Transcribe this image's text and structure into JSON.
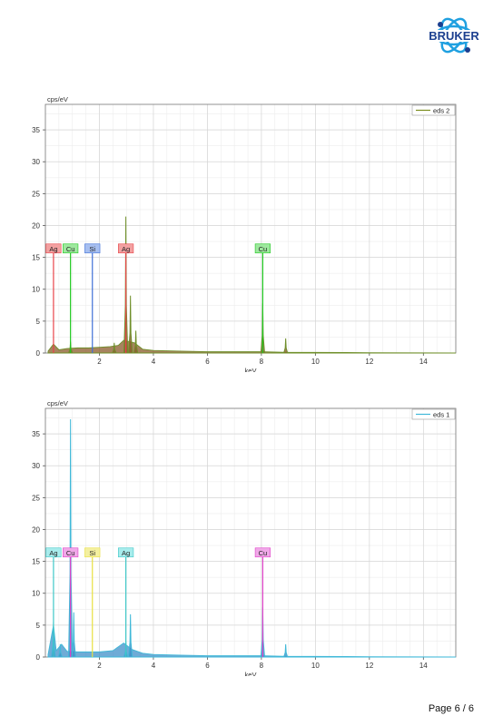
{
  "brand": {
    "logo_text": "BRUKER",
    "color": "#1c3f8f",
    "accent": "#1fa0e0"
  },
  "footer": {
    "page_label": "Page 6 / 6"
  },
  "chart_data": [
    {
      "type": "area",
      "ylabel": "cps/eV",
      "xlabel": "keV",
      "xlim": [
        0,
        15.2
      ],
      "ylim": [
        0,
        39
      ],
      "x_ticks": [
        2,
        4,
        6,
        8,
        10,
        12,
        14
      ],
      "y_ticks": [
        0,
        5,
        10,
        15,
        20,
        25,
        30,
        35
      ],
      "grid": true,
      "legend": {
        "position": "top-right",
        "entries": [
          {
            "label": "eds 2",
            "color": "#7a8c1e"
          }
        ]
      },
      "series": [
        {
          "name": "eds 2",
          "color": "#6f8f2a",
          "fill": "#8a5a2a",
          "baseline": [
            [
              0.1,
              0.3
            ],
            [
              0.3,
              1.4
            ],
            [
              0.5,
              0.5
            ],
            [
              0.8,
              0.7
            ],
            [
              1.2,
              0.8
            ],
            [
              1.6,
              0.8
            ],
            [
              2.0,
              0.9
            ],
            [
              2.4,
              1.0
            ],
            [
              2.7,
              1.2
            ],
            [
              2.9,
              2.0
            ],
            [
              3.3,
              1.6
            ],
            [
              3.6,
              0.6
            ],
            [
              4.0,
              0.4
            ],
            [
              5.0,
              0.3
            ],
            [
              6.0,
              0.2
            ],
            [
              7.0,
              0.2
            ],
            [
              8.0,
              0.2
            ],
            [
              9.0,
              0.1
            ],
            [
              10.0,
              0.1
            ],
            [
              12.0,
              0.05
            ],
            [
              15.2,
              0.0
            ]
          ],
          "peaks": [
            {
              "x": 0.93,
              "y": 1.8
            },
            {
              "x": 2.55,
              "y": 1.6
            },
            {
              "x": 2.98,
              "y": 21.4
            },
            {
              "x": 3.15,
              "y": 9.0
            },
            {
              "x": 3.35,
              "y": 3.5
            },
            {
              "x": 8.05,
              "y": 7.8
            },
            {
              "x": 8.9,
              "y": 2.3
            }
          ]
        }
      ],
      "markers": [
        {
          "label": "Ag",
          "x": 0.3,
          "y": 16.4,
          "color": "#e8454a",
          "box": "#f2a0a0"
        },
        {
          "label": "Cu",
          "x": 0.93,
          "y": 16.4,
          "color": "#1ec81e",
          "box": "#9ee89e"
        },
        {
          "label": "Si",
          "x": 1.74,
          "y": 16.4,
          "color": "#3f6fd6",
          "box": "#a7bff0"
        },
        {
          "label": "Ag",
          "x": 2.98,
          "y": 16.4,
          "color": "#e8454a",
          "box": "#f2a0a0"
        },
        {
          "label": "Cu",
          "x": 8.05,
          "y": 16.4,
          "color": "#1ec81e",
          "box": "#9ee89e"
        }
      ]
    },
    {
      "type": "area",
      "ylabel": "cps/eV",
      "xlabel": "keV",
      "xlim": [
        0,
        15.2
      ],
      "ylim": [
        0,
        39
      ],
      "x_ticks": [
        2,
        4,
        6,
        8,
        10,
        12,
        14
      ],
      "y_ticks": [
        0,
        5,
        10,
        15,
        20,
        25,
        30,
        35
      ],
      "grid": true,
      "legend": {
        "position": "top-right",
        "entries": [
          {
            "label": "eds 1",
            "color": "#3fb8d8"
          }
        ]
      },
      "series": [
        {
          "name": "eds 1",
          "color": "#3fb8d8",
          "fill": "#3f8fc8",
          "baseline": [
            [
              0.1,
              0.4
            ],
            [
              0.3,
              5.0
            ],
            [
              0.4,
              1.0
            ],
            [
              0.6,
              2.0
            ],
            [
              0.8,
              0.9
            ],
            [
              1.2,
              0.8
            ],
            [
              1.6,
              0.8
            ],
            [
              2.0,
              0.8
            ],
            [
              2.5,
              1.0
            ],
            [
              2.9,
              2.2
            ],
            [
              3.2,
              1.2
            ],
            [
              3.6,
              0.6
            ],
            [
              4.0,
              0.4
            ],
            [
              5.0,
              0.3
            ],
            [
              6.0,
              0.2
            ],
            [
              7.0,
              0.2
            ],
            [
              8.0,
              0.2
            ],
            [
              9.0,
              0.1
            ],
            [
              10.0,
              0.1
            ],
            [
              12.0,
              0.05
            ],
            [
              15.2,
              0.0
            ]
          ],
          "peaks": [
            {
              "x": 0.3,
              "y": 5.5
            },
            {
              "x": 0.55,
              "y": 2.0
            },
            {
              "x": 0.93,
              "y": 37.3
            },
            {
              "x": 1.05,
              "y": 7.0
            },
            {
              "x": 2.98,
              "y": 2.5
            },
            {
              "x": 3.15,
              "y": 6.7
            },
            {
              "x": 8.05,
              "y": 7.8
            },
            {
              "x": 8.9,
              "y": 2.0
            }
          ]
        }
      ],
      "markers": [
        {
          "label": "Ag",
          "x": 0.3,
          "y": 16.4,
          "color": "#3fc8c8",
          "box": "#a8ecec"
        },
        {
          "label": "Cu",
          "x": 0.93,
          "y": 16.4,
          "color": "#e040c8",
          "box": "#f0a8e8"
        },
        {
          "label": "Si",
          "x": 1.74,
          "y": 16.4,
          "color": "#e8e040",
          "box": "#f4f0a0"
        },
        {
          "label": "Ag",
          "x": 2.98,
          "y": 16.4,
          "color": "#3fc8c8",
          "box": "#a8ecec"
        },
        {
          "label": "Cu",
          "x": 8.05,
          "y": 16.4,
          "color": "#e040c8",
          "box": "#f0a8e8"
        }
      ]
    }
  ]
}
